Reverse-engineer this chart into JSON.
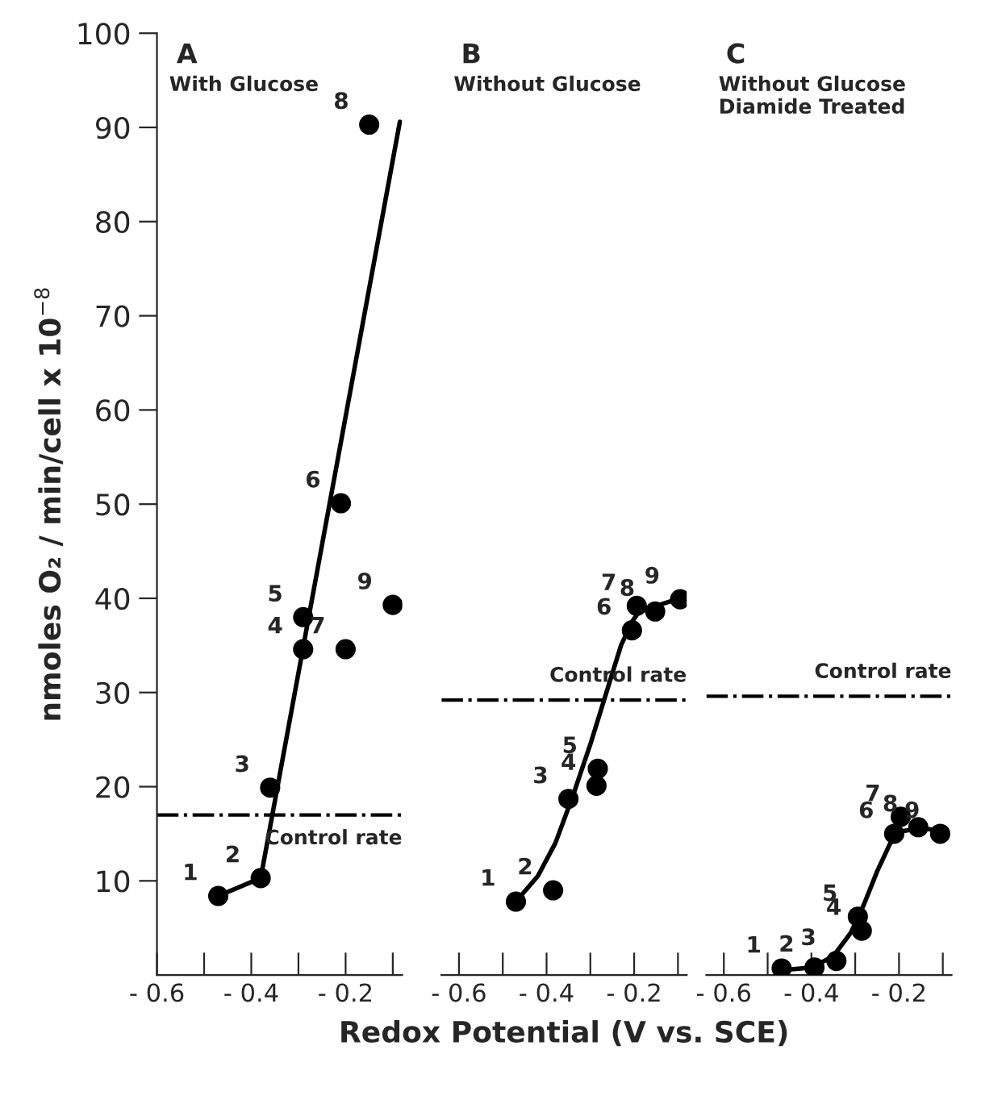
{
  "chart_data": [
    {
      "type": "scatter",
      "title": "A",
      "subtitle": "With Glucose",
      "ylabel": "nmoles O₂ / min/cell x 10$^{−8}$",
      "xlim": [
        -0.6,
        -0.08
      ],
      "ylim": [
        0,
        100
      ],
      "xticks": [
        {
          "value": -0.6,
          "label": "- 0.6"
        },
        {
          "value": -0.5,
          "label": null
        },
        {
          "value": -0.4,
          "label": "- 0.4"
        },
        {
          "value": -0.3,
          "label": null
        },
        {
          "value": -0.2,
          "label": "- 0.2"
        },
        {
          "value": -0.1,
          "label": null
        }
      ],
      "yticks": [
        10,
        20,
        30,
        40,
        50,
        60,
        70,
        80,
        90,
        100
      ],
      "series": [
        {
          "marker": "circle",
          "color": "#000000",
          "x": [
            -0.47,
            -0.38,
            -0.36,
            -0.29,
            -0.29,
            -0.21,
            -0.2,
            -0.15,
            -0.1
          ],
          "values": [
            8.4,
            10.3,
            19.9,
            34.6,
            38.0,
            50.1,
            34.6,
            90.3,
            39.3
          ]
        },
        {
          "type": "line",
          "color": "#000000",
          "x": [
            -0.47,
            -0.38,
            -0.085
          ],
          "values": [
            8.4,
            10.3,
            90.6
          ]
        }
      ],
      "ref_lines": [
        {
          "axis": "y",
          "value": 17.0,
          "label": "Control rate",
          "line_style": "dashdot",
          "color": "#000000"
        }
      ],
      "annotations": [
        {
          "text": "1",
          "x": -0.47,
          "y": 8.4
        },
        {
          "text": "2",
          "x": -0.38,
          "y": 10.3
        },
        {
          "text": "3",
          "x": -0.36,
          "y": 19.9
        },
        {
          "text": "4",
          "x": -0.29,
          "y": 34.6
        },
        {
          "text": "5",
          "x": -0.29,
          "y": 38.0
        },
        {
          "text": "6",
          "x": -0.21,
          "y": 50.1
        },
        {
          "text": "7",
          "x": -0.2,
          "y": 34.6
        },
        {
          "text": "8",
          "x": -0.15,
          "y": 90.3
        },
        {
          "text": "9",
          "x": -0.1,
          "y": 39.3
        }
      ]
    },
    {
      "type": "scatter",
      "title": "B",
      "subtitle": "Without Glucose",
      "xlabel": "Redox Potential (V vs. SCE)",
      "xlim": [
        -0.64,
        -0.08
      ],
      "ylim": [
        0,
        100
      ],
      "tick_labels": "x",
      "xticks": [
        {
          "value": -0.6,
          "label": "- 0.6"
        },
        {
          "value": -0.5,
          "label": null
        },
        {
          "value": -0.4,
          "label": "- 0.4"
        },
        {
          "value": -0.3,
          "label": null
        },
        {
          "value": -0.2,
          "label": "- 0.2"
        },
        {
          "value": -0.1,
          "label": null
        }
      ],
      "series": [
        {
          "marker": "circle",
          "color": "#000000",
          "x": [
            -0.47,
            -0.385,
            -0.35,
            -0.286,
            -0.283,
            -0.205,
            -0.194,
            -0.152,
            -0.095
          ],
          "values": [
            7.8,
            9.0,
            18.7,
            20.1,
            21.9,
            36.6,
            39.2,
            38.6,
            39.9
          ]
        },
        {
          "type": "line",
          "color": "#000000",
          "x": [
            -0.47,
            -0.42,
            -0.38,
            -0.34,
            -0.3,
            -0.26,
            -0.23,
            -0.205,
            -0.19,
            -0.15,
            -0.095
          ],
          "values": [
            7.8,
            10.5,
            14.0,
            19.0,
            24.5,
            30.5,
            35.0,
            37.5,
            38.5,
            39.2,
            40.0
          ]
        }
      ],
      "ref_lines": [
        {
          "axis": "y",
          "value": 29.2,
          "label": "Control rate",
          "line_style": "dashdot",
          "color": "#000000"
        }
      ],
      "annotations": [
        {
          "text": "1",
          "x": -0.47,
          "y": 7.8
        },
        {
          "text": "2",
          "x": -0.385,
          "y": 9.0
        },
        {
          "text": "3",
          "x": -0.35,
          "y": 18.7
        },
        {
          "text": "4",
          "x": -0.286,
          "y": 20.1
        },
        {
          "text": "5",
          "x": -0.283,
          "y": 21.9
        },
        {
          "text": "6",
          "x": -0.205,
          "y": 36.6
        },
        {
          "text": "7",
          "x": -0.194,
          "y": 39.2
        },
        {
          "text": "8",
          "x": -0.152,
          "y": 38.6
        },
        {
          "text": "9",
          "x": -0.095,
          "y": 39.9
        }
      ]
    },
    {
      "type": "scatter",
      "title": "C",
      "subtitle": "Without Glucose\nDiamide Treated",
      "xlim": [
        -0.64,
        -0.08
      ],
      "ylim": [
        0,
        100
      ],
      "tick_labels": "x",
      "xticks": [
        {
          "value": -0.6,
          "label": "- 0.6"
        },
        {
          "value": -0.5,
          "label": null
        },
        {
          "value": -0.4,
          "label": "- 0.4"
        },
        {
          "value": -0.3,
          "label": null
        },
        {
          "value": -0.2,
          "label": "- 0.2"
        },
        {
          "value": -0.1,
          "label": null
        }
      ],
      "series": [
        {
          "marker": "circle",
          "color": "#000000",
          "x": [
            -0.468,
            -0.393,
            -0.343,
            -0.285,
            -0.294,
            -0.211,
            -0.196,
            -0.156,
            -0.106
          ],
          "values": [
            0.7,
            0.8,
            1.5,
            4.7,
            6.2,
            15.0,
            16.8,
            15.7,
            15.0
          ]
        },
        {
          "type": "line",
          "color": "#000000",
          "x": [
            -0.47,
            -0.4,
            -0.35,
            -0.31,
            -0.28,
            -0.25,
            -0.22,
            -0.19,
            -0.15,
            -0.1
          ],
          "values": [
            0.5,
            0.8,
            2.0,
            4.5,
            7.5,
            11.0,
            14.0,
            15.3,
            15.6,
            15.3
          ]
        }
      ],
      "ref_lines": [
        {
          "axis": "y",
          "value": 29.6,
          "label": "Control rate",
          "line_style": "dashdot",
          "color": "#000000"
        }
      ],
      "annotations": [
        {
          "text": "1",
          "x": -0.468,
          "y": 0.7
        },
        {
          "text": "2",
          "x": -0.393,
          "y": 0.8
        },
        {
          "text": "3",
          "x": -0.343,
          "y": 1.5
        },
        {
          "text": "4",
          "x": -0.285,
          "y": 4.7
        },
        {
          "text": "5",
          "x": -0.294,
          "y": 6.2
        },
        {
          "text": "6",
          "x": -0.211,
          "y": 15.0
        },
        {
          "text": "7",
          "x": -0.196,
          "y": 16.8
        },
        {
          "text": "8",
          "x": -0.156,
          "y": 15.7
        },
        {
          "text": "9",
          "x": -0.106,
          "y": 15.0
        }
      ]
    }
  ]
}
